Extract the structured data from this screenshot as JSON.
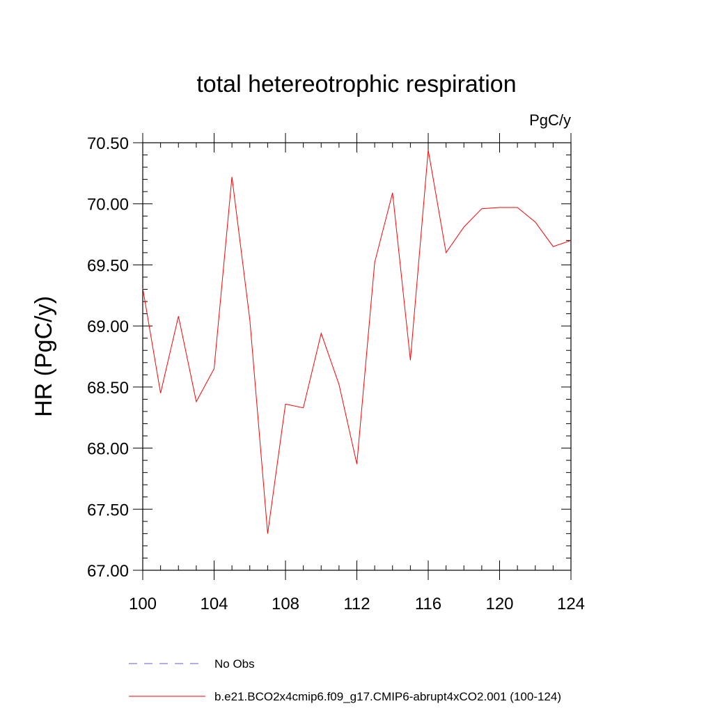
{
  "chart_data": {
    "type": "line",
    "title": "total hetereotrophic respiration",
    "units_label": "PgC/y",
    "xlabel": "",
    "ylabel": "HR  (PgC/y)",
    "xlim": [
      100,
      124
    ],
    "ylim": [
      67.0,
      70.5
    ],
    "x_ticks": [
      100,
      104,
      108,
      112,
      116,
      120,
      124
    ],
    "x_tick_labels": [
      "100",
      "104",
      "108",
      "112",
      "116",
      "120",
      "124"
    ],
    "y_ticks": [
      67.0,
      67.5,
      68.0,
      68.5,
      69.0,
      69.5,
      70.0,
      70.5
    ],
    "y_tick_labels": [
      "67.00",
      "67.50",
      "68.00",
      "68.50",
      "69.00",
      "69.50",
      "70.00",
      "70.50"
    ],
    "grid": false,
    "legend_position": "bottom",
    "series": [
      {
        "name": "b.e21.BCO2x4cmip6.f09_g17.CMIP6-abrupt4xCO2.001 (100-124)",
        "color": "#ff0000",
        "style": "solid",
        "x": [
          100,
          101,
          102,
          103,
          104,
          105,
          106,
          107,
          108,
          109,
          110,
          111,
          112,
          113,
          114,
          115,
          116,
          117,
          118,
          119,
          120,
          121,
          122,
          123,
          124
        ],
        "y": [
          69.31,
          68.45,
          69.08,
          68.38,
          68.65,
          70.22,
          69.05,
          67.3,
          68.36,
          68.33,
          68.94,
          68.52,
          67.87,
          69.52,
          70.09,
          68.72,
          70.44,
          69.6,
          69.81,
          69.96,
          69.97,
          69.97,
          69.85,
          69.65,
          69.7
        ]
      },
      {
        "name": "No Obs",
        "color": "#6a5acd",
        "style": "dashed",
        "x": [],
        "y": []
      }
    ]
  }
}
